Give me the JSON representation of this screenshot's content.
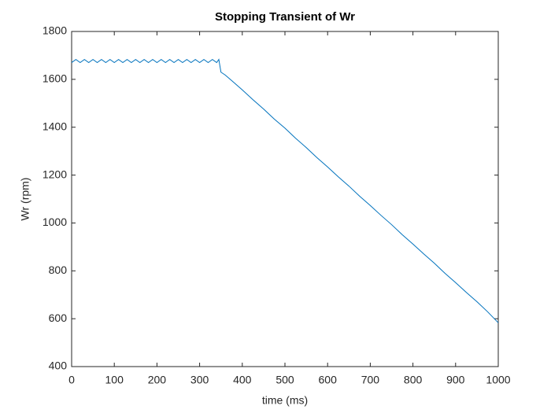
{
  "chart_data": {
    "type": "line",
    "title": "Stopping Transient of Wr",
    "xlabel": "time (ms)",
    "ylabel": "Wr (rpm)",
    "x": [
      0,
      10,
      20,
      30,
      40,
      50,
      60,
      70,
      80,
      90,
      100,
      110,
      120,
      130,
      140,
      150,
      160,
      170,
      180,
      190,
      200,
      210,
      220,
      230,
      240,
      250,
      260,
      270,
      280,
      290,
      300,
      310,
      320,
      330,
      340,
      345,
      350,
      360,
      375,
      400,
      425,
      450,
      475,
      500,
      525,
      550,
      575,
      600,
      625,
      650,
      675,
      700,
      725,
      750,
      775,
      800,
      825,
      850,
      875,
      900,
      925,
      950,
      975,
      1000
    ],
    "series": [
      {
        "name": "Wr",
        "color": "#0072bd",
        "values": [
          1670,
          1683,
          1670,
          1683,
          1670,
          1683,
          1670,
          1683,
          1670,
          1683,
          1670,
          1683,
          1670,
          1683,
          1670,
          1683,
          1670,
          1683,
          1670,
          1683,
          1670,
          1683,
          1670,
          1683,
          1670,
          1683,
          1670,
          1683,
          1670,
          1683,
          1670,
          1683,
          1670,
          1683,
          1670,
          1683,
          1630,
          1618,
          1595,
          1556,
          1515,
          1476,
          1434,
          1396,
          1354,
          1315,
          1273,
          1234,
          1193,
          1154,
          1112,
          1073,
          1032,
          993,
          951,
          912,
          871,
          832,
          790,
          751,
          710,
          671,
          629,
          583
        ]
      }
    ],
    "xlim": [
      0,
      1000
    ],
    "xticks": [
      0,
      100,
      200,
      300,
      400,
      500,
      600,
      700,
      800,
      900,
      1000
    ],
    "ylim": [
      400,
      1800
    ],
    "yticks": [
      400,
      600,
      800,
      1000,
      1200,
      1400,
      1600,
      1800
    ]
  }
}
